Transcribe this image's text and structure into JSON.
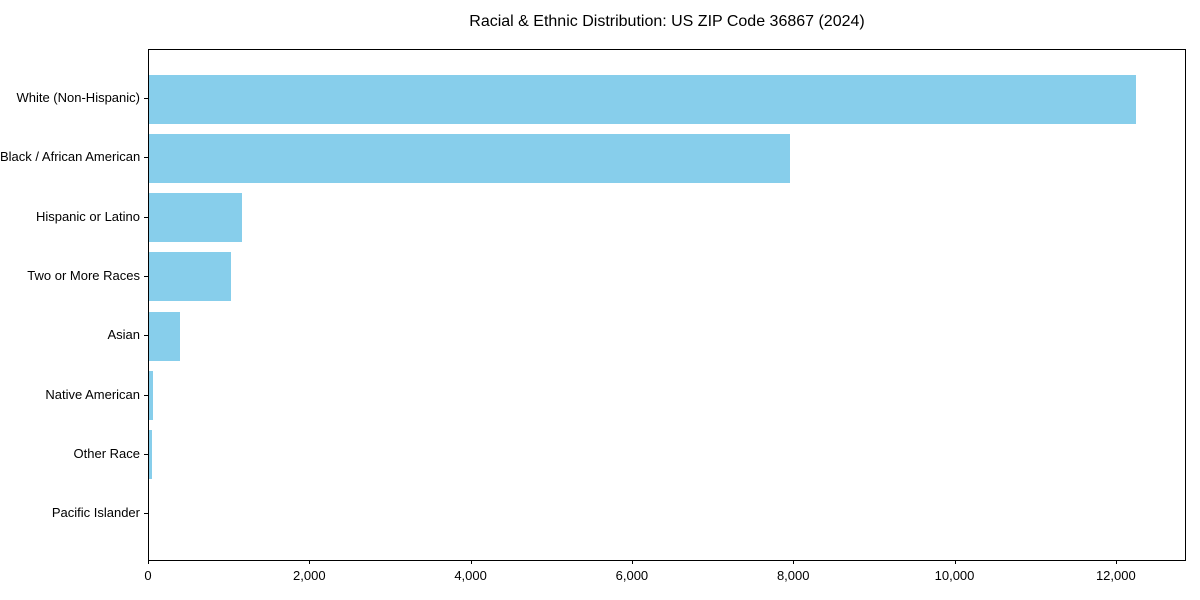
{
  "chart_data": {
    "type": "bar",
    "orientation": "horizontal",
    "title": "Racial & Ethnic Distribution: US ZIP Code 36867 (2024)",
    "categories": [
      "White (Non-Hispanic)",
      "Black / African American",
      "Hispanic or Latino",
      "Two or More Races",
      "Asian",
      "Native American",
      "Other Race",
      "Pacific Islander"
    ],
    "values": [
      12240,
      7950,
      1150,
      1020,
      380,
      55,
      40,
      0
    ],
    "xlabel": "",
    "ylabel": "",
    "xlim": [
      0,
      12870
    ],
    "xticks": [
      0,
      2000,
      4000,
      6000,
      8000,
      10000,
      12000
    ],
    "xtick_labels": [
      "0",
      "2,000",
      "4,000",
      "6,000",
      "8,000",
      "10,000",
      "12,000"
    ],
    "bar_color": "#87CEEB",
    "spine_color": "#000000",
    "text_color": "#000000",
    "background_color": "#FFFFFF",
    "grid": false,
    "legend": null
  }
}
